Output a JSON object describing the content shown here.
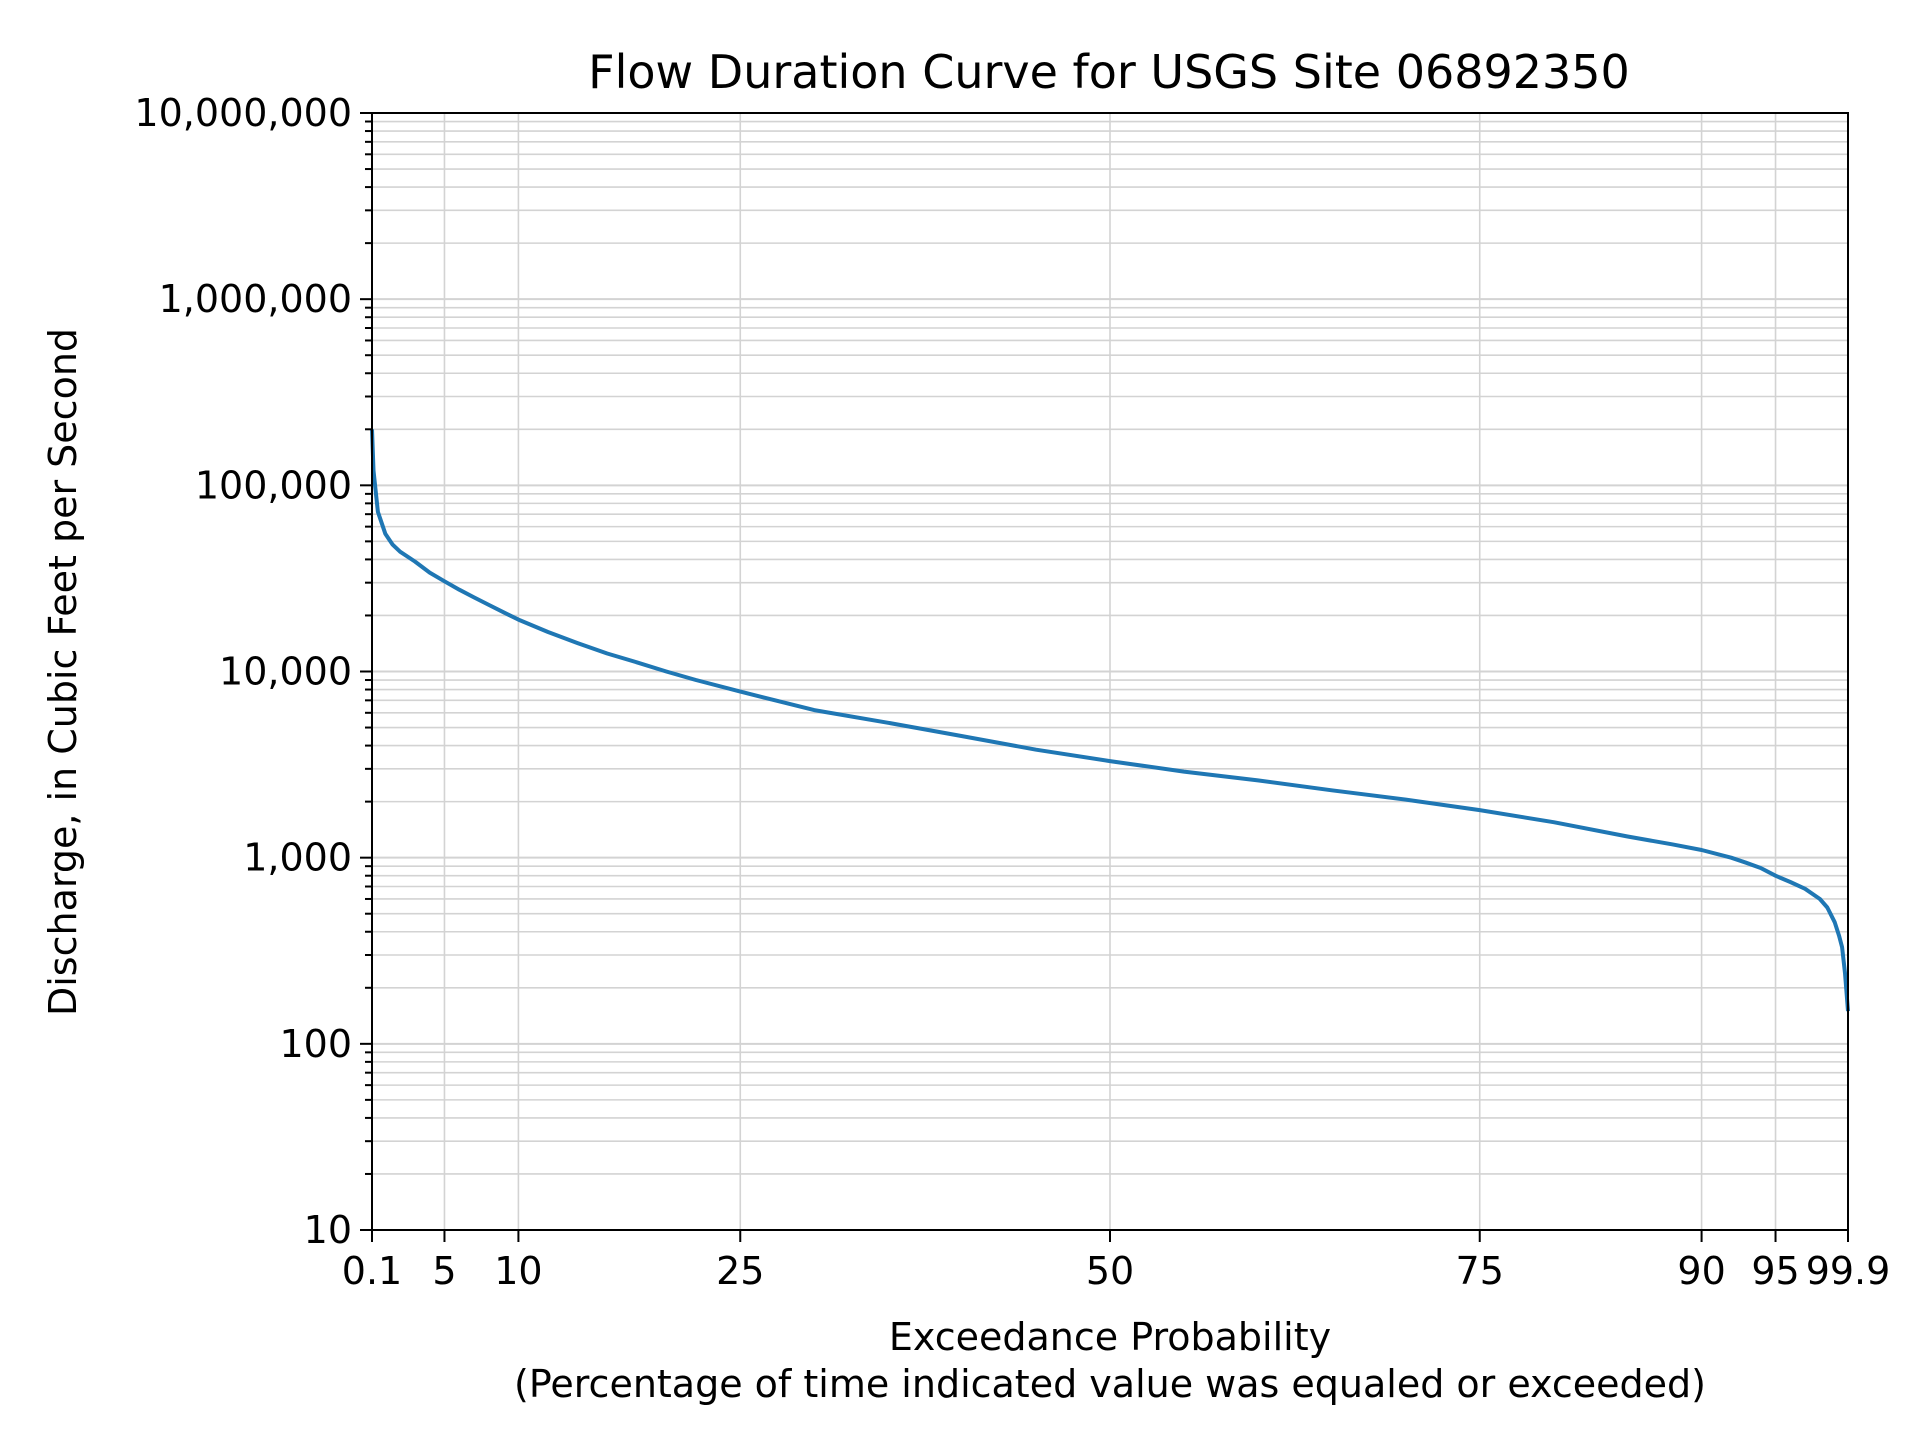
{
  "chart_data": {
    "type": "line",
    "title": "Flow Duration Curve for USGS Site 06892350",
    "xlabel": "Exceedance Probability",
    "xlabel_sub": "(Percentage of time indicated value was equaled or exceeded)",
    "ylabel": "Discharge, in Cubic Feet per Second",
    "y_scale": "log",
    "ylim": [
      10,
      10000000
    ],
    "xlim": [
      0.1,
      99.9
    ],
    "x_ticks": [
      0.1,
      5,
      10,
      25,
      50,
      75,
      90,
      95,
      99.9
    ],
    "x_tick_labels": [
      "0.1",
      "5",
      "10",
      "25",
      "50",
      "75",
      "90",
      "95",
      "99.9"
    ],
    "y_ticks": [
      10,
      100,
      1000,
      10000,
      100000,
      1000000,
      10000000
    ],
    "y_tick_labels": [
      "10",
      "100",
      "1,000",
      "10,000",
      "100,000",
      "1,000,000",
      "10,000,000"
    ],
    "grid": true,
    "line_color": "#1f77b4",
    "grid_color": "#d3d3d3",
    "series": [
      {
        "x": [
          0.1,
          0.2,
          0.5,
          1,
          1.5,
          2,
          3,
          4,
          5,
          6,
          7,
          8,
          9,
          10,
          12,
          14,
          16,
          18,
          20,
          22,
          25,
          28,
          30,
          35,
          40,
          45,
          50,
          55,
          60,
          65,
          70,
          75,
          80,
          85,
          88,
          90,
          92,
          93,
          94,
          95,
          96,
          97,
          98,
          98.5,
          99,
          99.3,
          99.5,
          99.7,
          99.9
        ],
        "y": [
          200000,
          120000,
          72000,
          55000,
          48000,
          44000,
          39000,
          34000,
          30500,
          27500,
          25000,
          22800,
          20800,
          19000,
          16300,
          14200,
          12500,
          11200,
          10000,
          9000,
          7800,
          6800,
          6200,
          5300,
          4500,
          3800,
          3300,
          2900,
          2600,
          2300,
          2050,
          1800,
          1550,
          1300,
          1180,
          1100,
          1000,
          940,
          880,
          800,
          740,
          680,
          600,
          540,
          450,
          380,
          330,
          240,
          150
        ]
      }
    ]
  }
}
